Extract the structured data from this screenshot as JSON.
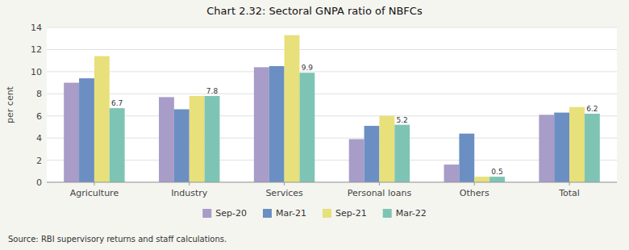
{
  "chart_data": {
    "type": "bar",
    "title": "Chart 2.32: Sectoral GNPA ratio of NBFCs",
    "categories": [
      "Agriculture",
      "Industry",
      "Services",
      "Personal loans",
      "Others",
      "Total"
    ],
    "series": [
      {
        "name": "Sep-20",
        "color": "#a89cc8",
        "values": [
          9.0,
          7.7,
          10.4,
          3.9,
          1.6,
          6.1
        ]
      },
      {
        "name": "Mar-21",
        "color": "#6b8fc2",
        "values": [
          9.4,
          6.6,
          10.5,
          5.1,
          4.4,
          6.3
        ]
      },
      {
        "name": "Sep-21",
        "color": "#e8e07a",
        "values": [
          11.4,
          7.8,
          13.3,
          6.0,
          0.5,
          6.8
        ]
      },
      {
        "name": "Mar-22",
        "color": "#7ec4b4",
        "values": [
          6.7,
          7.8,
          9.9,
          5.2,
          0.5,
          6.2
        ],
        "data_labels": true
      }
    ],
    "ylabel": "per cent",
    "ylim": [
      0,
      14
    ],
    "yticks": [
      0,
      2,
      4,
      6,
      8,
      10,
      12,
      14
    ],
    "grid": true,
    "legend": "bottom",
    "source": "Source: RBI supervisory returns and staff calculations."
  }
}
